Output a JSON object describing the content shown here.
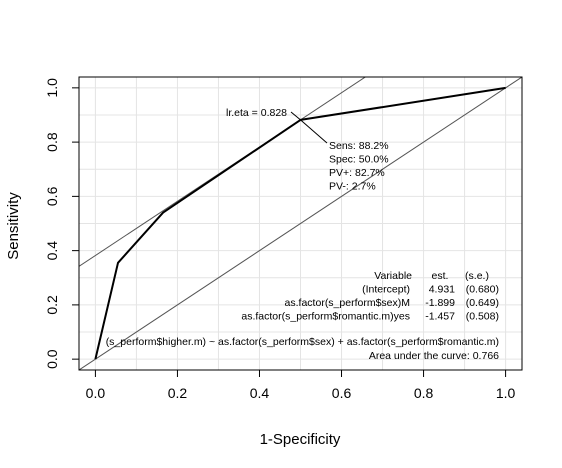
{
  "chart_data": {
    "type": "line",
    "title": "",
    "xlabel": "1-Specificity",
    "ylabel": "Sensitivity",
    "xlim": [
      -0.04,
      1.04
    ],
    "ylim": [
      -0.04,
      1.04
    ],
    "x_ticks": [
      "0.0",
      "0.2",
      "0.4",
      "0.6",
      "0.8",
      "1.0"
    ],
    "y_ticks": [
      "0.0",
      "0.2",
      "0.4",
      "0.6",
      "0.8",
      "1.0"
    ],
    "grid": true,
    "series": [
      {
        "x": [
          0.0,
          0.055,
          0.165,
          0.5,
          1.0
        ],
        "y": [
          0.0,
          0.355,
          0.54,
          0.882,
          1.0
        ]
      }
    ],
    "reference_lines": {
      "diagonal": [
        [
          0,
          0
        ],
        [
          1,
          1
        ]
      ],
      "tangent": {
        "intercept": 0.382,
        "slope": 1.0
      }
    },
    "cutoff_point": {
      "x": 0.5,
      "y": 0.882
    },
    "cutoff_label": "lr.eta = 0.828",
    "cutoff_stats": [
      "Sens: 88.2%",
      "Spec: 50.0%",
      "PV+: 82.7%",
      "PV-: 2.7%"
    ],
    "coef_table": {
      "headers": [
        "Variable",
        "est.",
        "(s.e.)"
      ],
      "rows": [
        [
          "(Intercept)",
          "4.931",
          "(0.680)"
        ],
        [
          "as.factor(s_perform$sex)M",
          "-1.899",
          "(0.649)"
        ],
        [
          "as.factor(s_perform$romantic.m)yes",
          "-1.457",
          "(0.508)"
        ]
      ]
    },
    "formula": "(s_perform$higher.m) ~ as.factor(s_perform$sex) + as.factor(s_perform$romantic.m)",
    "auc_text": "Area under the curve: 0.766"
  }
}
